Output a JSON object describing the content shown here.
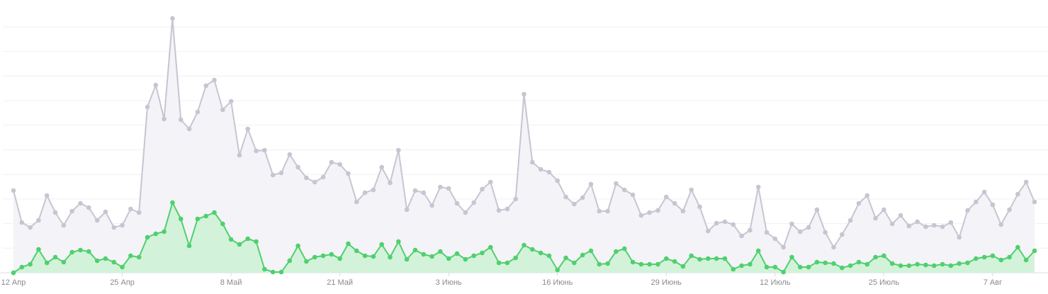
{
  "chart_data": {
    "type": "area",
    "categories": [
      "12 Апр",
      null,
      null,
      null,
      null,
      null,
      null,
      null,
      null,
      null,
      null,
      null,
      null,
      "25 Апр",
      null,
      null,
      null,
      null,
      null,
      null,
      null,
      null,
      null,
      null,
      null,
      null,
      "8 Май",
      null,
      null,
      null,
      null,
      null,
      null,
      null,
      null,
      null,
      null,
      null,
      null,
      "21 Май",
      null,
      null,
      null,
      null,
      null,
      null,
      null,
      null,
      null,
      null,
      null,
      null,
      "3 Июнь",
      null,
      null,
      null,
      null,
      null,
      null,
      null,
      null,
      null,
      null,
      null,
      null,
      "16 Июнь",
      null,
      null,
      null,
      null,
      null,
      null,
      null,
      null,
      null,
      null,
      null,
      null,
      "29 Июнь",
      null,
      null,
      null,
      null,
      null,
      null,
      null,
      null,
      null,
      null,
      null,
      null,
      "12 Июль",
      null,
      null,
      null,
      null,
      null,
      null,
      null,
      null,
      null,
      null,
      null,
      null,
      "25 Июль",
      null,
      null,
      null,
      null,
      null,
      null,
      null,
      null,
      null,
      null,
      null,
      null,
      "7 Авг",
      null,
      null,
      null,
      null,
      null
    ],
    "series": [
      {
        "color": "#c8c5d2",
        "fill": "#f4f3f7",
        "values": [
          116,
          71,
          64,
          74,
          109,
          85,
          67,
          87,
          98,
          92,
          74,
          86,
          64,
          67,
          90,
          85,
          234,
          265,
          217,
          359,
          216,
          203,
          227,
          264,
          272,
          230,
          242,
          166,
          203,
          172,
          173,
          138,
          141,
          167,
          149,
          134,
          128,
          135,
          156,
          153,
          140,
          100,
          113,
          117,
          149,
          127,
          173,
          89,
          116,
          113,
          95,
          121,
          119,
          98,
          85,
          99,
          118,
          128,
          88,
          90,
          104,
          252,
          156,
          146,
          142,
          130,
          107,
          97,
          106,
          125,
          87,
          87,
          126,
          117,
          110,
          81,
          85,
          88,
          107,
          98,
          87,
          117,
          93,
          59,
          70,
          72,
          68,
          52,
          60,
          121,
          57,
          48,
          36,
          69,
          58,
          64,
          89,
          57,
          36,
          54,
          74,
          98,
          109,
          77,
          89,
          69,
          81,
          66,
          72,
          65,
          67,
          65,
          71,
          50,
          88,
          100,
          114,
          96,
          68,
          89,
          111,
          128,
          100
        ]
      },
      {
        "color": "#4fd06e",
        "fill": "#d3f2da",
        "values": [
          0,
          8,
          12,
          33,
          14,
          22,
          15,
          29,
          32,
          30,
          17,
          20,
          15,
          8,
          24,
          22,
          50,
          55,
          58,
          99,
          76,
          38,
          76,
          80,
          85,
          69,
          47,
          40,
          48,
          44,
          5,
          1,
          1,
          17,
          38,
          16,
          22,
          24,
          26,
          20,
          41,
          31,
          24,
          23,
          40,
          22,
          44,
          19,
          32,
          26,
          23,
          30,
          20,
          27,
          19,
          24,
          28,
          36,
          14,
          14,
          21,
          39,
          33,
          28,
          24,
          4,
          21,
          14,
          25,
          31,
          12,
          13,
          30,
          34,
          15,
          12,
          12,
          12,
          20,
          16,
          9,
          24,
          19,
          20,
          20,
          20,
          5,
          10,
          12,
          31,
          8,
          8,
          1,
          22,
          8,
          8,
          15,
          14,
          13,
          7,
          10,
          15,
          12,
          22,
          24,
          13,
          10,
          10,
          12,
          11,
          10,
          12,
          10,
          13,
          14,
          20,
          22,
          24,
          18,
          22,
          36,
          18,
          31
        ]
      }
    ],
    "ylim": [
      0,
      385
    ],
    "grid": true
  }
}
